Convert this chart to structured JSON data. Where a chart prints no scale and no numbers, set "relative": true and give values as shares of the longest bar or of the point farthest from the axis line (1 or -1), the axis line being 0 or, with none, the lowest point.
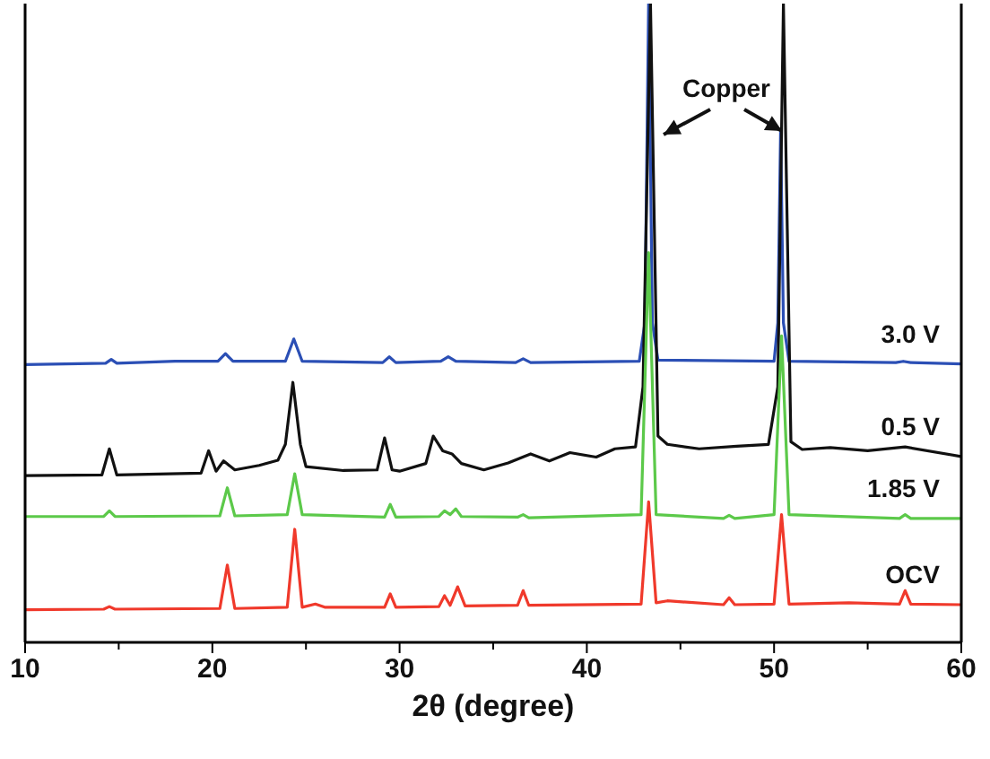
{
  "chart_data": {
    "type": "line",
    "relative": true,
    "xlabel": "2θ (degree)",
    "xlim": [
      10,
      60
    ],
    "xticks": [
      10,
      {
        "value": 15,
        "label": null
      },
      20,
      {
        "value": 25,
        "label": null
      },
      30,
      {
        "value": 35,
        "label": null
      },
      40,
      {
        "value": 45,
        "label": null
      },
      50,
      {
        "value": 55,
        "label": null
      },
      60
    ],
    "tick_labels": "x",
    "grid": false,
    "marker": "none",
    "line_style": "solid",
    "annotations": [
      "Copper"
    ],
    "series": [
      {
        "name": "3.0 V",
        "color": "#2b4fb5",
        "x": [
          10,
          14.3,
          14.6,
          14.9,
          18,
          20.3,
          20.7,
          21.1,
          23.9,
          24.35,
          24.8,
          29.1,
          29.45,
          29.8,
          32.2,
          32.6,
          33,
          36.2,
          36.6,
          37,
          42.8,
          43.1,
          43.3,
          43.5,
          43.8,
          50,
          50.2,
          50.35,
          50.5,
          50.8,
          56.5,
          56.9,
          57.3,
          60
        ],
        "values": [
          0.435,
          0.437,
          0.443,
          0.437,
          0.44,
          0.44,
          0.452,
          0.44,
          0.44,
          0.475,
          0.44,
          0.438,
          0.447,
          0.438,
          0.44,
          0.447,
          0.44,
          0.438,
          0.444,
          0.438,
          0.44,
          0.5,
          1,
          0.5,
          0.442,
          0.44,
          0.5,
          0.803,
          0.5,
          0.44,
          0.438,
          0.44,
          0.438,
          0.436
        ]
      },
      {
        "name": "0.5 V",
        "color": "#111111",
        "x": [
          10,
          14.1,
          14.5,
          14.9,
          19.4,
          19.8,
          20.2,
          20.6,
          21.2,
          22.5,
          23.5,
          23.9,
          24.3,
          24.7,
          25,
          27,
          28.8,
          29.2,
          29.6,
          30,
          31.4,
          31.8,
          32.3,
          32.8,
          33.3,
          34.5,
          35.8,
          37,
          38,
          39.1,
          40.5,
          41.5,
          42.6,
          43,
          43.4,
          43.8,
          44.3,
          46,
          48,
          49.7,
          50.2,
          50.5,
          50.9,
          51.5,
          53,
          55,
          57,
          60
        ],
        "values": [
          0.261,
          0.262,
          0.303,
          0.262,
          0.265,
          0.3,
          0.268,
          0.284,
          0.27,
          0.277,
          0.285,
          0.31,
          0.407,
          0.31,
          0.275,
          0.269,
          0.27,
          0.32,
          0.27,
          0.268,
          0.28,
          0.323,
          0.3,
          0.295,
          0.28,
          0.27,
          0.281,
          0.295,
          0.284,
          0.297,
          0.29,
          0.303,
          0.306,
          0.4,
          1,
          0.323,
          0.31,
          0.303,
          0.307,
          0.31,
          0.4,
          1,
          0.314,
          0.302,
          0.305,
          0.3,
          0.306,
          0.291
        ]
      },
      {
        "name": "1.85 V",
        "color": "#5cc94a",
        "x": [
          10,
          14.2,
          14.5,
          14.8,
          20.4,
          20.8,
          21.2,
          24,
          24.4,
          24.8,
          29.2,
          29.5,
          29.8,
          32.1,
          32.4,
          32.7,
          33,
          33.3,
          36.3,
          36.6,
          36.9,
          42.9,
          43.3,
          43.7,
          47.3,
          47.6,
          47.9,
          50,
          50.4,
          50.8,
          56.7,
          57,
          57.3,
          60
        ],
        "values": [
          0.197,
          0.197,
          0.206,
          0.197,
          0.198,
          0.242,
          0.198,
          0.2,
          0.264,
          0.2,
          0.196,
          0.216,
          0.196,
          0.197,
          0.206,
          0.2,
          0.209,
          0.197,
          0.196,
          0.2,
          0.195,
          0.2,
          0.61,
          0.2,
          0.194,
          0.199,
          0.194,
          0.2,
          0.48,
          0.2,
          0.194,
          0.2,
          0.194,
          0.194
        ]
      },
      {
        "name": "OCV",
        "color": "#f0392b",
        "x": [
          10,
          14.2,
          14.5,
          14.8,
          20.4,
          20.8,
          21.2,
          24,
          24.4,
          24.8,
          25.5,
          26,
          29.2,
          29.5,
          29.8,
          32.1,
          32.4,
          32.7,
          33.1,
          33.5,
          36.3,
          36.6,
          36.9,
          42.9,
          43.3,
          43.7,
          44.3,
          47.3,
          47.6,
          47.9,
          50,
          50.4,
          50.8,
          54,
          56.7,
          57,
          57.3,
          60
        ],
        "values": [
          0.051,
          0.052,
          0.056,
          0.052,
          0.053,
          0.121,
          0.053,
          0.055,
          0.177,
          0.055,
          0.06,
          0.055,
          0.055,
          0.076,
          0.055,
          0.056,
          0.073,
          0.058,
          0.087,
          0.057,
          0.058,
          0.081,
          0.058,
          0.06,
          0.22,
          0.062,
          0.065,
          0.059,
          0.07,
          0.059,
          0.06,
          0.2,
          0.06,
          0.062,
          0.06,
          0.081,
          0.06,
          0.059
        ]
      }
    ]
  }
}
